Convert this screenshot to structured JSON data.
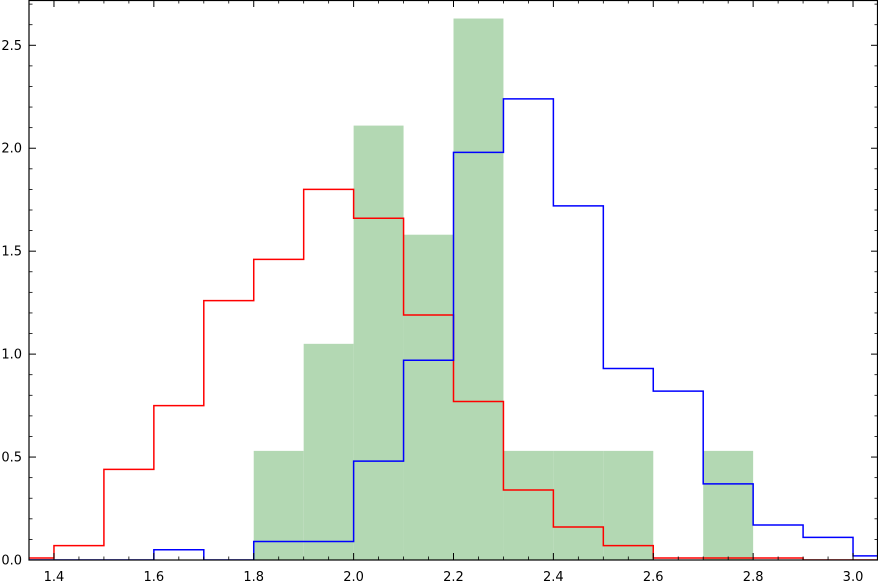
{
  "chart_data": {
    "type": "histogram",
    "title": "",
    "xlabel": "",
    "ylabel": "",
    "xlim": [
      1.35,
      3.05
    ],
    "ylim": [
      0,
      2.72
    ],
    "grid": false,
    "x_ticks": [
      "1.4",
      "1.6",
      "1.8",
      "2.0",
      "2.2",
      "2.4",
      "2.6",
      "2.8",
      "3.0"
    ],
    "y_ticks": [
      "0.0",
      "0.5",
      "1.0",
      "1.5",
      "2.0",
      "2.5"
    ],
    "bin_edges": [
      1.3,
      1.4,
      1.5,
      1.6,
      1.7,
      1.8,
      1.9,
      2.0,
      2.1,
      2.2,
      2.3,
      2.4,
      2.5,
      2.6,
      2.7,
      2.8,
      2.9,
      3.0,
      3.1
    ],
    "series": [
      {
        "style": "filled",
        "color": "#b3d8b3",
        "values": [
          0,
          0,
          0,
          0,
          0,
          0.53,
          1.05,
          2.11,
          1.58,
          2.63,
          0.53,
          0.53,
          0.53,
          0,
          0.53,
          0,
          0,
          0
        ]
      },
      {
        "style": "step",
        "color": "#ff0000",
        "values": [
          0.01,
          0.07,
          0.44,
          0.75,
          1.26,
          1.46,
          1.8,
          1.66,
          1.19,
          0.77,
          0.34,
          0.16,
          0.07,
          0.01,
          0.01,
          0.01,
          0,
          0
        ]
      },
      {
        "style": "step",
        "color": "#0000ff",
        "values": [
          0,
          0,
          0,
          0.05,
          0,
          0.09,
          0.09,
          0.48,
          0.97,
          1.98,
          2.24,
          1.72,
          0.93,
          0.82,
          0.37,
          0.17,
          0.11,
          0.02
        ]
      }
    ]
  }
}
